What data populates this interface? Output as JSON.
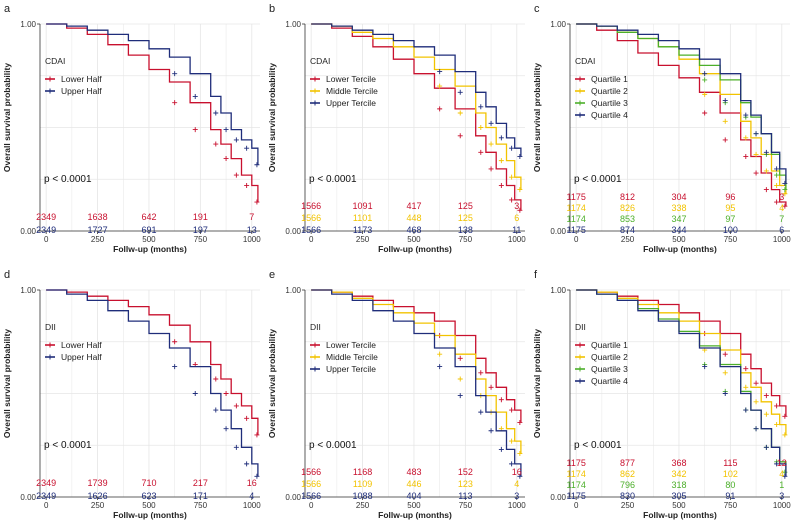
{
  "figure": {
    "ylabel": "Overall survival probability",
    "xlabel": "Follw-up (months)"
  },
  "chart_data": [
    {
      "panel": "a",
      "type": "line",
      "title": "",
      "xlabel": "Follw-up (months)",
      "ylabel": "Overall survival probability",
      "xlim": [
        0,
        1040
      ],
      "ylim": [
        0,
        1
      ],
      "xticks": [
        "0",
        "250",
        "500",
        "750",
        "1000"
      ],
      "yticks": [
        "0.00",
        "0.25",
        "0.50",
        "0.75",
        "1.00"
      ],
      "legend_title": "CDAI",
      "pvalue": "p < 0.0001",
      "risk_times": [
        0,
        250,
        500,
        750,
        1000
      ],
      "series": [
        {
          "name": "Lower Half",
          "color": "#c8102e",
          "x": [
            0,
            100,
            200,
            300,
            400,
            500,
            600,
            700,
            800,
            850,
            900,
            950,
            1000,
            1030
          ],
          "y": [
            1.0,
            0.98,
            0.95,
            0.9,
            0.85,
            0.78,
            0.72,
            0.62,
            0.49,
            0.42,
            0.35,
            0.27,
            0.22,
            0.14
          ],
          "at_risk": [
            "2349",
            "1638",
            "642",
            "191",
            "7"
          ]
        },
        {
          "name": "Upper Half",
          "color": "#1f2d7a",
          "x": [
            0,
            100,
            200,
            300,
            400,
            500,
            600,
            700,
            800,
            850,
            900,
            950,
            1000,
            1030
          ],
          "y": [
            1.0,
            0.99,
            0.97,
            0.95,
            0.92,
            0.88,
            0.84,
            0.76,
            0.65,
            0.57,
            0.49,
            0.44,
            0.4,
            0.32
          ],
          "at_risk": [
            "2349",
            "1727",
            "691",
            "197",
            "13"
          ]
        }
      ]
    },
    {
      "panel": "b",
      "type": "line",
      "title": "",
      "xlabel": "Follw-up (months)",
      "ylabel": "Overall survival probability",
      "xlim": [
        0,
        1040
      ],
      "ylim": [
        0,
        1
      ],
      "xticks": [
        "0",
        "250",
        "500",
        "750",
        "1000"
      ],
      "yticks": [
        "0.00",
        "0.25",
        "0.50",
        "0.75",
        "1.00"
      ],
      "legend_title": "CDAI",
      "pvalue": "p < 0.0001",
      "risk_times": [
        0,
        250,
        500,
        750,
        1000
      ],
      "series": [
        {
          "name": "Lower Tercile",
          "color": "#c8102e",
          "x": [
            0,
            100,
            200,
            300,
            400,
            500,
            600,
            700,
            800,
            850,
            900,
            950,
            990,
            1020
          ],
          "y": [
            1.0,
            0.98,
            0.94,
            0.89,
            0.83,
            0.76,
            0.69,
            0.59,
            0.46,
            0.38,
            0.3,
            0.22,
            0.15,
            0.1
          ],
          "at_risk": [
            "1566",
            "1091",
            "417",
            "125",
            "3"
          ]
        },
        {
          "name": "Middle Tercile",
          "color": "#f2c300",
          "x": [
            0,
            100,
            200,
            300,
            400,
            500,
            600,
            700,
            800,
            850,
            900,
            950,
            990,
            1020
          ],
          "y": [
            1.0,
            0.99,
            0.96,
            0.93,
            0.89,
            0.84,
            0.78,
            0.7,
            0.57,
            0.5,
            0.42,
            0.34,
            0.26,
            0.2
          ],
          "at_risk": [
            "1566",
            "1101",
            "448",
            "125",
            "6"
          ]
        },
        {
          "name": "Upper Tercile",
          "color": "#1f2d7a",
          "x": [
            0,
            100,
            200,
            300,
            400,
            500,
            600,
            700,
            800,
            850,
            900,
            950,
            990,
            1020
          ],
          "y": [
            1.0,
            0.99,
            0.97,
            0.95,
            0.92,
            0.89,
            0.85,
            0.77,
            0.67,
            0.6,
            0.52,
            0.45,
            0.4,
            0.36
          ],
          "at_risk": [
            "1566",
            "1173",
            "468",
            "138",
            "11"
          ]
        }
      ]
    },
    {
      "panel": "c",
      "type": "line",
      "title": "",
      "xlabel": "Follw-up (months)",
      "ylabel": "Overall survival probability",
      "xlim": [
        0,
        1040
      ],
      "ylim": [
        0,
        1
      ],
      "xticks": [
        "0",
        "250",
        "500",
        "750",
        "1000"
      ],
      "yticks": [
        "0.00",
        "0.25",
        "0.50",
        "0.75",
        "1.00"
      ],
      "legend_title": "CDAI",
      "pvalue": "p < 0.0001",
      "risk_times": [
        0,
        250,
        500,
        750,
        1000
      ],
      "series": [
        {
          "name": "Quartile 1",
          "color": "#c8102e",
          "x": [
            0,
            100,
            200,
            300,
            400,
            500,
            600,
            700,
            800,
            850,
            900,
            950,
            990,
            1020
          ],
          "y": [
            1.0,
            0.97,
            0.92,
            0.86,
            0.8,
            0.74,
            0.67,
            0.57,
            0.44,
            0.36,
            0.28,
            0.2,
            0.14,
            0.12
          ],
          "at_risk": [
            "1175",
            "812",
            "304",
            "96",
            "3"
          ]
        },
        {
          "name": "Quartile 2",
          "color": "#f2c300",
          "x": [
            0,
            100,
            200,
            300,
            400,
            500,
            600,
            700,
            800,
            850,
            900,
            950,
            990,
            1020
          ],
          "y": [
            1.0,
            0.99,
            0.96,
            0.93,
            0.89,
            0.83,
            0.76,
            0.66,
            0.53,
            0.45,
            0.37,
            0.29,
            0.22,
            0.18
          ],
          "at_risk": [
            "1174",
            "826",
            "338",
            "95",
            "4"
          ]
        },
        {
          "name": "Quartile 3",
          "color": "#4caf2a",
          "x": [
            0,
            100,
            200,
            300,
            400,
            500,
            600,
            700,
            800,
            850,
            900,
            950,
            990,
            1020
          ],
          "y": [
            1.0,
            0.99,
            0.96,
            0.93,
            0.89,
            0.85,
            0.8,
            0.73,
            0.62,
            0.55,
            0.47,
            0.37,
            0.27,
            0.2
          ],
          "at_risk": [
            "1174",
            "853",
            "347",
            "97",
            "7"
          ]
        },
        {
          "name": "Quartile 4",
          "color": "#1f2d7a",
          "x": [
            0,
            100,
            200,
            300,
            400,
            500,
            600,
            700,
            800,
            850,
            900,
            950,
            990,
            1020
          ],
          "y": [
            1.0,
            0.99,
            0.97,
            0.95,
            0.92,
            0.88,
            0.83,
            0.76,
            0.63,
            0.56,
            0.47,
            0.38,
            0.3,
            0.23
          ],
          "at_risk": [
            "1175",
            "874",
            "344",
            "100",
            "6"
          ]
        }
      ]
    },
    {
      "panel": "d",
      "type": "line",
      "title": "",
      "xlabel": "Follw-up (months)",
      "ylabel": "Overall survival probability",
      "xlim": [
        0,
        1040
      ],
      "ylim": [
        0,
        1
      ],
      "xticks": [
        "0",
        "250",
        "500",
        "750",
        "1000"
      ],
      "yticks": [
        "0.00",
        "0.25",
        "0.50",
        "0.75",
        "1.00"
      ],
      "legend_title": "DII",
      "pvalue": "p < 0.0001",
      "risk_times": [
        0,
        250,
        500,
        750,
        1000
      ],
      "series": [
        {
          "name": "Lower Half",
          "color": "#c8102e",
          "x": [
            0,
            100,
            200,
            300,
            400,
            500,
            600,
            700,
            800,
            850,
            900,
            950,
            1000,
            1030
          ],
          "y": [
            1.0,
            0.99,
            0.97,
            0.95,
            0.92,
            0.88,
            0.83,
            0.75,
            0.64,
            0.57,
            0.5,
            0.44,
            0.38,
            0.3
          ],
          "at_risk": [
            "2349",
            "1739",
            "710",
            "217",
            "16"
          ]
        },
        {
          "name": "Upper Half",
          "color": "#1f2d7a",
          "x": [
            0,
            100,
            200,
            300,
            400,
            500,
            600,
            700,
            800,
            850,
            900,
            950,
            1000,
            1030
          ],
          "y": [
            1.0,
            0.98,
            0.95,
            0.9,
            0.85,
            0.79,
            0.72,
            0.63,
            0.5,
            0.42,
            0.33,
            0.24,
            0.16,
            0.1
          ],
          "at_risk": [
            "2349",
            "1626",
            "623",
            "171",
            "4"
          ]
        }
      ]
    },
    {
      "panel": "e",
      "type": "line",
      "title": "",
      "xlabel": "Follw-up (months)",
      "ylabel": "Overall survival probability",
      "xlim": [
        0,
        1040
      ],
      "ylim": [
        0,
        1
      ],
      "xticks": [
        "0",
        "250",
        "500",
        "750",
        "1000"
      ],
      "yticks": [
        "0.00",
        "0.25",
        "0.50",
        "0.75",
        "1.00"
      ],
      "legend_title": "DII",
      "pvalue": "p < 0.0001",
      "risk_times": [
        0,
        250,
        500,
        750,
        1000
      ],
      "series": [
        {
          "name": "Lower Tercile",
          "color": "#c8102e",
          "x": [
            0,
            100,
            200,
            300,
            400,
            500,
            600,
            700,
            800,
            850,
            900,
            950,
            990,
            1020
          ],
          "y": [
            1.0,
            0.99,
            0.97,
            0.95,
            0.92,
            0.89,
            0.85,
            0.78,
            0.67,
            0.6,
            0.53,
            0.47,
            0.42,
            0.36
          ],
          "at_risk": [
            "1566",
            "1168",
            "483",
            "152",
            "16"
          ]
        },
        {
          "name": "Middle Tercile",
          "color": "#f2c300",
          "x": [
            0,
            100,
            200,
            300,
            400,
            500,
            600,
            700,
            800,
            850,
            900,
            950,
            990,
            1020
          ],
          "y": [
            1.0,
            0.99,
            0.96,
            0.93,
            0.89,
            0.84,
            0.78,
            0.69,
            0.57,
            0.49,
            0.41,
            0.33,
            0.27,
            0.21
          ],
          "at_risk": [
            "1566",
            "1109",
            "446",
            "123",
            "4"
          ]
        },
        {
          "name": "Upper Tercile",
          "color": "#1f2d7a",
          "x": [
            0,
            100,
            200,
            300,
            400,
            500,
            600,
            700,
            800,
            850,
            900,
            950,
            990,
            1020
          ],
          "y": [
            1.0,
            0.98,
            0.95,
            0.9,
            0.85,
            0.79,
            0.72,
            0.63,
            0.49,
            0.41,
            0.32,
            0.23,
            0.16,
            0.1
          ],
          "at_risk": [
            "1566",
            "1088",
            "404",
            "113",
            "3"
          ]
        }
      ]
    },
    {
      "panel": "f",
      "type": "line",
      "title": "",
      "xlabel": "Follw-up (months)",
      "ylabel": "Overall survival probability",
      "xlim": [
        0,
        1040
      ],
      "ylim": [
        0,
        1
      ],
      "xticks": [
        "0",
        "250",
        "500",
        "750",
        "1000"
      ],
      "yticks": [
        "0.00",
        "0.25",
        "0.50",
        "0.75",
        "1.00"
      ],
      "legend_title": "DII",
      "pvalue": "p < 0.0001",
      "risk_times": [
        0,
        250,
        500,
        750,
        1000
      ],
      "series": [
        {
          "name": "Quartile 1",
          "color": "#c8102e",
          "x": [
            0,
            100,
            200,
            300,
            400,
            500,
            600,
            700,
            800,
            850,
            900,
            950,
            990,
            1020
          ],
          "y": [
            1.0,
            0.99,
            0.97,
            0.95,
            0.93,
            0.89,
            0.85,
            0.79,
            0.69,
            0.62,
            0.55,
            0.49,
            0.44,
            0.39
          ],
          "at_risk": [
            "1175",
            "877",
            "368",
            "115",
            "12"
          ]
        },
        {
          "name": "Quartile 2",
          "color": "#f2c300",
          "x": [
            0,
            100,
            200,
            300,
            400,
            500,
            600,
            700,
            800,
            850,
            900,
            950,
            990,
            1020
          ],
          "y": [
            1.0,
            0.99,
            0.96,
            0.93,
            0.89,
            0.85,
            0.79,
            0.71,
            0.6,
            0.53,
            0.46,
            0.4,
            0.35,
            0.3
          ],
          "at_risk": [
            "1174",
            "862",
            "342",
            "102",
            "4"
          ]
        },
        {
          "name": "Quartile 3",
          "color": "#4caf2a",
          "x": [
            0,
            100,
            200,
            300,
            400,
            500,
            600,
            700,
            800,
            850,
            900,
            950,
            990,
            1020
          ],
          "y": [
            1.0,
            0.98,
            0.95,
            0.91,
            0.86,
            0.8,
            0.73,
            0.64,
            0.51,
            0.42,
            0.33,
            0.24,
            0.17,
            0.12
          ],
          "at_risk": [
            "1174",
            "796",
            "318",
            "80",
            "1"
          ]
        },
        {
          "name": "Quartile 4",
          "color": "#1f2d7a",
          "x": [
            0,
            100,
            200,
            300,
            400,
            500,
            600,
            700,
            800,
            850,
            900,
            950,
            990,
            1020
          ],
          "y": [
            1.0,
            0.98,
            0.95,
            0.9,
            0.85,
            0.79,
            0.72,
            0.63,
            0.5,
            0.42,
            0.33,
            0.24,
            0.16,
            0.1
          ],
          "at_risk": [
            "1175",
            "830",
            "305",
            "91",
            "3"
          ]
        }
      ]
    }
  ]
}
